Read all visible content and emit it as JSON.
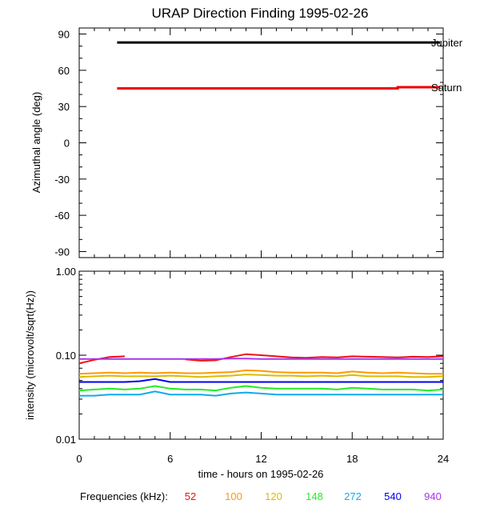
{
  "chart_data": {
    "title": "URAP Direction Finding  1995-02-26",
    "xlabel": "time - hours on 1995-02-26",
    "xlim": [
      0,
      24
    ],
    "x_ticks": [
      0,
      6,
      12,
      18,
      24
    ],
    "x_tick_labels": [
      "0",
      "6",
      "12",
      "18",
      "24"
    ],
    "panels": [
      {
        "type": "line",
        "ylabel": "Azimuthal angle (deg)",
        "ylim": [
          -95,
          95
        ],
        "y_ticks": [
          90,
          60,
          30,
          0,
          -30,
          -60,
          -90
        ],
        "y_tick_labels": [
          "90",
          "60",
          "30",
          "0",
          "-30",
          "-60",
          "-90"
        ],
        "series": [
          {
            "name": "Jupiter",
            "color": "#000000",
            "x": [
              2.5,
              23.8
            ],
            "y": [
              83,
              83
            ]
          },
          {
            "name": "Saturn",
            "color": "#ee0000",
            "x": [
              2.5,
              21,
              21,
              23.8
            ],
            "y": [
              45,
              45,
              46,
              46
            ]
          }
        ]
      },
      {
        "type": "line",
        "y_scale": "log",
        "ylabel": "intensity (microvolt/sqrt(Hz))",
        "ylim": [
          0.01,
          1.0
        ],
        "y_ticks": [
          1.0,
          0.1,
          0.01
        ],
        "y_tick_labels": [
          "1.00",
          "0.10",
          "0.01"
        ],
        "x": [
          0,
          1,
          2,
          3,
          4,
          5,
          6,
          7,
          8,
          9,
          10,
          11,
          12,
          13,
          14,
          15,
          16,
          17,
          18,
          19,
          20,
          21,
          22,
          23,
          24
        ],
        "series": [
          {
            "freq": "52",
            "color": "#ee1111",
            "values": [
              0.08,
              0.088,
              0.095,
              0.097,
              null,
              null,
              null,
              0.089,
              0.086,
              0.087,
              0.095,
              0.103,
              0.1,
              0.097,
              0.094,
              0.093,
              0.095,
              0.094,
              0.097,
              0.096,
              0.095,
              0.094,
              0.096,
              0.095,
              0.097
            ]
          },
          {
            "freq": "940",
            "color": "#aa33ee",
            "values": [
              0.09,
              0.09,
              0.09,
              0.09,
              0.09,
              0.09,
              0.09,
              0.09,
              0.09,
              0.09,
              0.091,
              0.091,
              0.09,
              0.09,
              0.09,
              0.09,
              0.09,
              0.09,
              0.09,
              0.09,
              0.09,
              0.09,
              0.09,
              0.09,
              0.09
            ]
          },
          {
            "freq": "100",
            "color": "#ff9900",
            "values": [
              0.06,
              0.061,
              0.062,
              0.061,
              0.062,
              0.061,
              0.062,
              0.061,
              0.061,
              0.062,
              0.063,
              0.066,
              0.065,
              0.063,
              0.062,
              0.062,
              0.062,
              0.061,
              0.064,
              0.062,
              0.061,
              0.062,
              0.061,
              0.06,
              0.06
            ]
          },
          {
            "freq": "120",
            "color": "#ddbb00",
            "values": [
              0.055,
              0.056,
              0.057,
              0.056,
              0.056,
              0.056,
              0.057,
              0.056,
              0.055,
              0.056,
              0.057,
              0.059,
              0.058,
              0.057,
              0.057,
              0.056,
              0.057,
              0.056,
              0.058,
              0.056,
              0.056,
              0.056,
              0.055,
              0.055,
              0.056
            ]
          },
          {
            "freq": "540",
            "color": "#0000ee",
            "values": [
              0.048,
              0.048,
              0.048,
              0.048,
              0.049,
              0.052,
              0.048,
              0.048,
              0.048,
              0.048,
              0.048,
              0.048,
              0.048,
              0.048,
              0.048,
              0.048,
              0.048,
              0.048,
              0.048,
              0.048,
              0.048,
              0.048,
              0.048,
              0.048,
              0.048
            ]
          },
          {
            "freq": "148",
            "color": "#22ee22",
            "values": [
              0.038,
              0.039,
              0.04,
              0.039,
              0.04,
              0.043,
              0.04,
              0.039,
              0.039,
              0.038,
              0.041,
              0.043,
              0.041,
              0.04,
              0.04,
              0.04,
              0.04,
              0.039,
              0.041,
              0.04,
              0.039,
              0.039,
              0.039,
              0.038,
              0.039
            ]
          },
          {
            "freq": "272",
            "color": "#11aaee",
            "values": [
              0.033,
              0.033,
              0.034,
              0.034,
              0.034,
              0.037,
              0.034,
              0.034,
              0.034,
              0.033,
              0.035,
              0.036,
              0.035,
              0.034,
              0.034,
              0.034,
              0.034,
              0.034,
              0.034,
              0.034,
              0.034,
              0.034,
              0.034,
              0.034,
              0.034
            ]
          }
        ]
      }
    ],
    "legend": {
      "label": "Frequencies (kHz):",
      "placement": "bottom",
      "entries": [
        {
          "text": "52",
          "color": "#ee1111"
        },
        {
          "text": "100",
          "color": "#ff9900"
        },
        {
          "text": "120",
          "color": "#ddbb00"
        },
        {
          "text": "148",
          "color": "#22ee22"
        },
        {
          "text": "272",
          "color": "#11aaee"
        },
        {
          "text": "540",
          "color": "#0000ee"
        },
        {
          "text": "940",
          "color": "#aa33ee"
        }
      ]
    }
  }
}
